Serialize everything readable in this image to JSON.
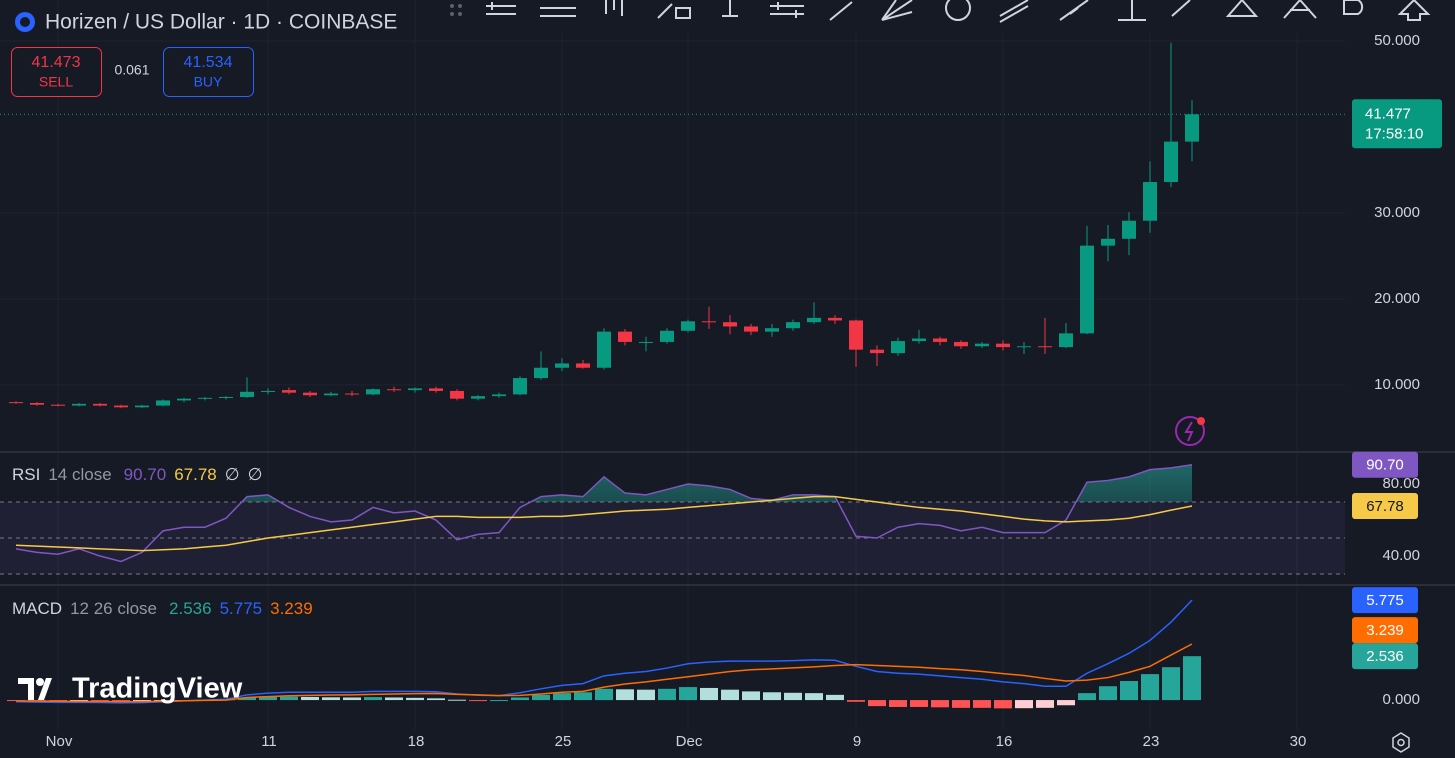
{
  "header": {
    "symbol": "Horizen / US Dollar · 1D · COINBASE",
    "sell": {
      "price": 41.473,
      "label": "SELL"
    },
    "spread": 0.061,
    "buy": {
      "price": 41.534,
      "label": "BUY"
    }
  },
  "watermark": "TradingView",
  "chart_data": [
    {
      "type": "candlestick",
      "categories": [
        null,
        null,
        "Nov",
        null,
        null,
        null,
        null,
        null,
        null,
        null,
        null,
        null,
        "11",
        null,
        null,
        null,
        null,
        null,
        null,
        "18",
        null,
        null,
        null,
        null,
        null,
        null,
        "25",
        null,
        null,
        null,
        null,
        null,
        "Dec",
        null,
        null,
        null,
        null,
        null,
        null,
        null,
        "9",
        null,
        null,
        null,
        null,
        null,
        null,
        "16",
        null,
        null,
        null,
        null,
        null,
        null,
        "23",
        null,
        null,
        null,
        null,
        null,
        null,
        "30"
      ],
      "open": [
        8.0,
        7.9,
        7.7,
        7.6,
        7.8,
        7.6,
        7.4,
        7.6,
        8.2,
        8.4,
        8.5,
        8.6,
        9.2,
        9.4,
        9.1,
        8.8,
        9.0,
        8.9,
        9.5,
        9.4,
        9.6,
        9.3,
        8.4,
        8.7,
        8.9,
        10.8,
        12.0,
        12.5,
        12.0,
        16.2,
        15.0,
        15.0,
        16.3,
        17.4,
        17.3,
        16.8,
        16.2,
        16.6,
        17.3,
        17.8,
        17.5,
        14.1,
        13.7,
        15.1,
        15.4,
        15.0,
        14.5,
        14.8,
        14.4,
        14.5,
        14.4,
        16.0,
        26.2,
        27.0,
        29.1,
        33.6,
        38.3,
        null,
        null,
        null,
        null,
        null
      ],
      "high": [
        8.1,
        8.0,
        7.8,
        7.9,
        7.9,
        7.7,
        7.7,
        8.3,
        8.5,
        8.6,
        8.7,
        10.9,
        9.6,
        9.7,
        9.3,
        9.2,
        9.3,
        9.6,
        9.8,
        9.7,
        9.8,
        9.5,
        8.8,
        9.1,
        11.0,
        13.9,
        13.1,
        12.9,
        16.6,
        16.5,
        15.6,
        16.6,
        17.6,
        19.1,
        18.1,
        17.1,
        17.1,
        17.6,
        19.6,
        18.1,
        17.6,
        14.6,
        15.5,
        16.4,
        15.6,
        15.2,
        15.0,
        15.2,
        15.0,
        17.8,
        17.2,
        28.5,
        28.6,
        30.1,
        36.0,
        49.8,
        43.1,
        null,
        null,
        null,
        null,
        null
      ],
      "low": [
        7.8,
        7.6,
        7.5,
        7.5,
        7.5,
        7.3,
        7.3,
        7.5,
        8.0,
        8.2,
        8.3,
        8.5,
        8.9,
        8.9,
        8.6,
        8.7,
        8.7,
        8.8,
        9.2,
        9.1,
        9.1,
        8.2,
        8.2,
        8.5,
        8.8,
        10.6,
        11.6,
        11.9,
        11.8,
        14.6,
        13.9,
        14.8,
        16.1,
        16.5,
        15.9,
        15.8,
        15.6,
        16.3,
        17.1,
        17.1,
        12.1,
        12.2,
        13.4,
        14.8,
        14.6,
        14.2,
        14.3,
        14.0,
        13.6,
        13.6,
        14.3,
        15.9,
        24.4,
        25.1,
        27.7,
        33.0,
        36.0,
        null,
        null,
        null,
        null,
        null
      ],
      "close": [
        7.9,
        7.7,
        7.6,
        7.8,
        7.6,
        7.4,
        7.6,
        8.2,
        8.4,
        8.5,
        8.6,
        9.2,
        9.3,
        9.1,
        8.8,
        9.0,
        8.9,
        9.5,
        9.4,
        9.6,
        9.3,
        8.4,
        8.7,
        8.9,
        10.8,
        12.0,
        12.5,
        12.0,
        16.2,
        15.0,
        15.0,
        16.3,
        17.4,
        17.3,
        16.8,
        16.2,
        16.6,
        17.3,
        17.8,
        17.5,
        14.1,
        13.7,
        15.1,
        15.4,
        15.0,
        14.5,
        14.8,
        14.4,
        14.5,
        14.4,
        16.0,
        26.2,
        27.0,
        29.1,
        33.6,
        38.3,
        41.477,
        null,
        null,
        null,
        null,
        null
      ],
      "up_color": "#089981",
      "down_color": "#f23645",
      "ylim": [
        2.2,
        54.77
      ],
      "yticks": [
        {
          "value": 10,
          "label": "10.000"
        },
        {
          "value": 20,
          "label": "20.000"
        },
        {
          "value": 30,
          "label": "30.000"
        },
        {
          "value": 50,
          "label": "50.000"
        }
      ],
      "grid": true,
      "last_price": 41.477,
      "countdown": "17:58:10"
    },
    {
      "type": "line",
      "title": "RSI",
      "inputs": "14 close",
      "flags": [
        "∅",
        "∅"
      ],
      "series": [
        {
          "color": "#7e57c2",
          "last_label": "90.70",
          "values": [
            44,
            42,
            41,
            44,
            40,
            37,
            42,
            54,
            56,
            56,
            61,
            73,
            74,
            67,
            62,
            59,
            60,
            67,
            64,
            65,
            60,
            49,
            52,
            53,
            67,
            73,
            74,
            73,
            84,
            75,
            74,
            77,
            80,
            79,
            77,
            72,
            71,
            74,
            74,
            73,
            51,
            50,
            56,
            58,
            57,
            54,
            56,
            53,
            53,
            53,
            60,
            81,
            82,
            84,
            88,
            89,
            90.7,
            null,
            null,
            null,
            null,
            null
          ]
        },
        {
          "color": "#f7c948",
          "values": [
            46,
            45.5,
            45,
            44.5,
            44,
            43.5,
            43,
            43.5,
            44,
            45,
            46,
            48,
            50,
            51.5,
            53,
            54.5,
            56,
            57.5,
            59,
            60.5,
            62,
            62,
            61.5,
            61.5,
            61.5,
            62,
            62,
            63,
            64,
            65,
            65.5,
            66,
            67,
            68,
            69,
            70,
            71,
            72,
            73,
            73,
            71.5,
            70,
            68.5,
            67,
            66,
            65,
            63.5,
            62,
            60.5,
            59.5,
            59,
            59.5,
            60,
            61,
            63,
            65.5,
            67.78,
            null,
            null,
            null,
            null,
            null
          ]
        }
      ],
      "band_lines": [
        70,
        50,
        30
      ],
      "ylim": [
        23.9,
        97.8
      ],
      "yticks": [
        {
          "value": 80,
          "label": "80.00"
        },
        {
          "value": 40,
          "label": "40.00"
        }
      ]
    },
    {
      "type": "macd",
      "title": "MACD",
      "inputs": "12 26 close",
      "histogram": {
        "values": [
          -0.05,
          -0.06,
          -0.06,
          -0.05,
          -0.06,
          -0.07,
          -0.06,
          -0.03,
          -0.01,
          0.02,
          0.05,
          0.15,
          0.2,
          0.2,
          0.18,
          0.16,
          0.15,
          0.17,
          0.15,
          0.13,
          0.1,
          0.02,
          -0.02,
          0.0,
          0.15,
          0.3,
          0.4,
          0.45,
          0.65,
          0.62,
          0.6,
          0.65,
          0.75,
          0.7,
          0.6,
          0.5,
          0.45,
          0.42,
          0.4,
          0.3,
          -0.1,
          -0.35,
          -0.4,
          -0.4,
          -0.42,
          -0.45,
          -0.45,
          -0.48,
          -0.47,
          -0.45,
          -0.3,
          0.4,
          0.8,
          1.1,
          1.5,
          1.9,
          2.536,
          null,
          null,
          null,
          null,
          null
        ],
        "colors": {
          "grow_up": "#26a69a",
          "fall_up": "#b2dfdb",
          "fall_down": "#ff5252",
          "grow_down": "#ffcdd2"
        }
      },
      "series": [
        {
          "color": "#2962ff",
          "values": [
            -0.1,
            -0.12,
            -0.13,
            -0.13,
            -0.14,
            -0.16,
            -0.15,
            -0.1,
            -0.05,
            0.0,
            0.05,
            0.3,
            0.4,
            0.45,
            0.45,
            0.45,
            0.45,
            0.5,
            0.5,
            0.5,
            0.48,
            0.35,
            0.28,
            0.26,
            0.42,
            0.65,
            0.85,
            0.95,
            1.4,
            1.55,
            1.65,
            1.85,
            2.1,
            2.2,
            2.25,
            2.25,
            2.25,
            2.28,
            2.32,
            2.3,
            1.95,
            1.65,
            1.55,
            1.5,
            1.4,
            1.3,
            1.2,
            1.05,
            0.95,
            0.8,
            0.8,
            1.55,
            2.1,
            2.7,
            3.45,
            4.5,
            5.775,
            null,
            null,
            null,
            null,
            null
          ]
        },
        {
          "color": "#ff6d00",
          "values": [
            -0.05,
            -0.06,
            -0.07,
            -0.08,
            -0.08,
            -0.09,
            -0.09,
            -0.07,
            -0.04,
            -0.02,
            0.0,
            0.15,
            0.2,
            0.25,
            0.27,
            0.29,
            0.3,
            0.33,
            0.35,
            0.37,
            0.38,
            0.33,
            0.3,
            0.26,
            0.27,
            0.35,
            0.45,
            0.5,
            0.75,
            0.93,
            1.05,
            1.2,
            1.35,
            1.5,
            1.65,
            1.75,
            1.8,
            1.86,
            1.92,
            2.0,
            2.05,
            2.0,
            1.95,
            1.9,
            1.82,
            1.75,
            1.65,
            1.53,
            1.42,
            1.25,
            1.1,
            1.15,
            1.3,
            1.6,
            1.95,
            2.6,
            3.239,
            null,
            null,
            null,
            null,
            null
          ]
        }
      ],
      "ylim": [
        -1.73,
        6.65
      ],
      "yticks": [
        {
          "value": 0,
          "label": "0.000"
        }
      ]
    }
  ]
}
